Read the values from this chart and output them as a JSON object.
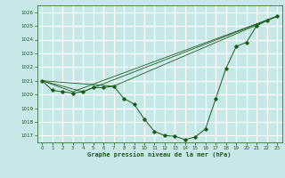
{
  "title": "Graphe pression niveau de la mer (hPa)",
  "bg_color": "#c8e8e8",
  "grid_color": "#ffffff",
  "line_color": "#1a5c1a",
  "xlim": [
    -0.5,
    23.5
  ],
  "ylim": [
    1016.5,
    1026.5
  ],
  "yticks": [
    1017,
    1018,
    1019,
    1020,
    1021,
    1022,
    1023,
    1024,
    1025,
    1026
  ],
  "xticks": [
    0,
    1,
    2,
    3,
    4,
    5,
    6,
    7,
    8,
    9,
    10,
    11,
    12,
    13,
    14,
    15,
    16,
    17,
    18,
    19,
    20,
    21,
    22,
    23
  ],
  "series": {
    "main": [
      [
        0,
        1021.0
      ],
      [
        1,
        1020.3
      ],
      [
        2,
        1020.2
      ],
      [
        3,
        1020.1
      ],
      [
        4,
        1020.2
      ],
      [
        5,
        1020.5
      ],
      [
        6,
        1020.5
      ],
      [
        7,
        1020.6
      ],
      [
        8,
        1019.7
      ],
      [
        9,
        1019.3
      ],
      [
        10,
        1018.2
      ],
      [
        11,
        1017.3
      ],
      [
        12,
        1017.0
      ],
      [
        13,
        1016.95
      ],
      [
        14,
        1016.7
      ],
      [
        15,
        1016.9
      ],
      [
        16,
        1017.5
      ],
      [
        17,
        1019.7
      ],
      [
        18,
        1021.9
      ],
      [
        19,
        1023.5
      ],
      [
        20,
        1023.8
      ],
      [
        21,
        1025.0
      ],
      [
        22,
        1025.4
      ],
      [
        23,
        1025.7
      ]
    ],
    "line2": [
      [
        0,
        1021.0
      ],
      [
        3,
        1020.2
      ],
      [
        23,
        1025.7
      ]
    ],
    "line3": [
      [
        0,
        1021.0
      ],
      [
        4,
        1020.2
      ],
      [
        23,
        1025.7
      ]
    ],
    "line4": [
      [
        0,
        1021.0
      ],
      [
        7,
        1020.6
      ],
      [
        23,
        1025.7
      ]
    ]
  }
}
